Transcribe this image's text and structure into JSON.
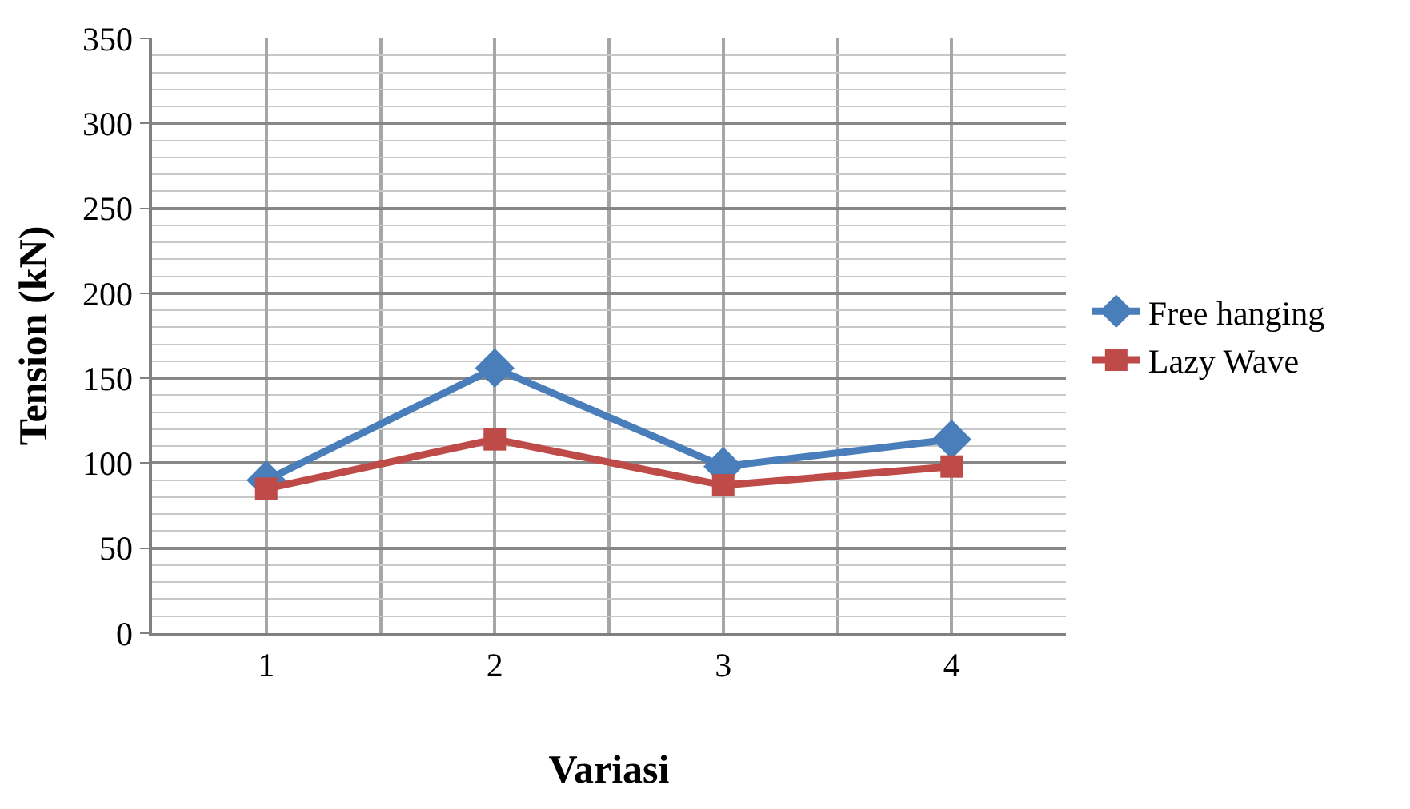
{
  "chart_data": {
    "type": "line",
    "xlabel": "Variasi",
    "ylabel": "Tension (kN)",
    "categories": [
      "1",
      "2",
      "3",
      "4"
    ],
    "series": [
      {
        "name": "Free hanging",
        "color": "#4a7ebb",
        "marker": "diamond",
        "values": [
          90,
          156,
          98,
          114
        ]
      },
      {
        "name": "Lazy Wave",
        "color": "#be4b48",
        "marker": "square",
        "values": [
          85,
          114,
          87,
          98
        ]
      }
    ],
    "ylim": [
      0,
      350
    ],
    "yticks": [
      0,
      50,
      100,
      150,
      200,
      250,
      300,
      350
    ],
    "grid": true,
    "legend": "right"
  }
}
